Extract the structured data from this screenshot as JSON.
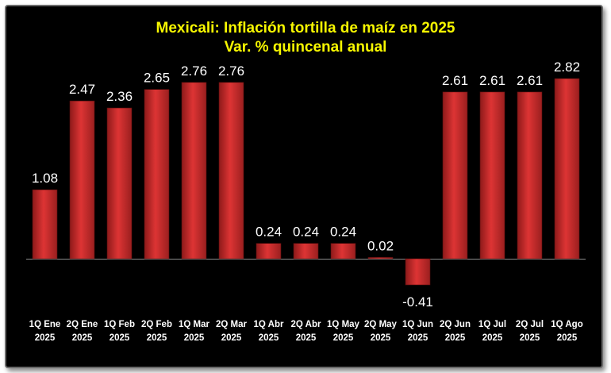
{
  "chart_data": {
    "type": "bar",
    "title": "Mexicali: Inflación tortilla de maíz en 2025",
    "subtitle": "Var. % quincenal anual",
    "xlabel": "",
    "ylabel": "",
    "categories": [
      [
        "1Q Ene",
        "2025"
      ],
      [
        "2Q Ene",
        "2025"
      ],
      [
        "1Q Feb",
        "2025"
      ],
      [
        "2Q Feb",
        "2025"
      ],
      [
        "1Q Mar",
        "2025"
      ],
      [
        "2Q Mar",
        "2025"
      ],
      [
        "1Q Abr",
        "2025"
      ],
      [
        "2Q Abr",
        "2025"
      ],
      [
        "1Q May",
        "2025"
      ],
      [
        "2Q May",
        "2025"
      ],
      [
        "1Q Jun",
        "2025"
      ],
      [
        "2Q Jun",
        "2025"
      ],
      [
        "1Q Jul",
        "2025"
      ],
      [
        "2Q Jul",
        "2025"
      ],
      [
        "1Q Ago",
        "2025"
      ]
    ],
    "values": [
      1.08,
      2.47,
      2.36,
      2.65,
      2.76,
      2.76,
      0.24,
      0.24,
      0.24,
      0.02,
      -0.41,
      2.61,
      2.61,
      2.61,
      2.82
    ],
    "value_labels": [
      "1.08",
      "2.47",
      "2.36",
      "2.65",
      "2.76",
      "2.76",
      "0.24",
      "0.24",
      "0.24",
      "0.02",
      "-0.41",
      "2.61",
      "2.61",
      "2.61",
      "2.82"
    ],
    "grid": false,
    "legend": "none",
    "colors": {
      "background": "#000000",
      "bar": "#cc2b2b",
      "title": "#f7f700",
      "text": "#ffffff",
      "baseline": "#8c8c8c"
    }
  }
}
